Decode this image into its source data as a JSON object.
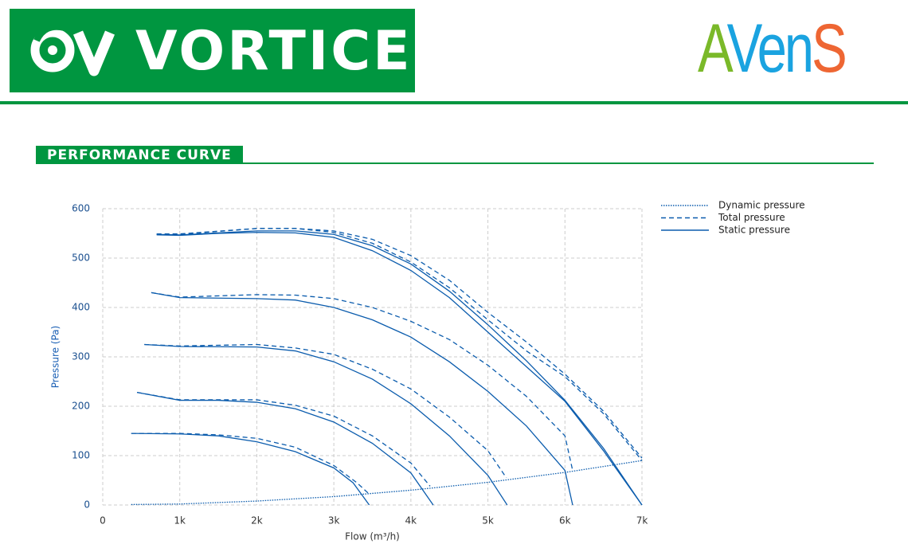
{
  "header": {
    "left_logo": "VORTICE",
    "right_logo": [
      {
        "text": "A",
        "color": "#7ab929"
      },
      {
        "text": "Ven",
        "color": "#1aa3e0"
      },
      {
        "text": "S",
        "color": "#ee6633"
      }
    ]
  },
  "section_title": "PERFORMANCE CURVE",
  "chart_data": {
    "type": "line",
    "x_label": "Flow (m³/h)",
    "y_label": "Pressure (Pa)",
    "xlim": [
      0,
      7000
    ],
    "ylim": [
      0,
      600
    ],
    "xticks": [
      0,
      {
        "value": 1000,
        "label": "1k"
      },
      {
        "value": 2000,
        "label": "2k"
      },
      {
        "value": 3000,
        "label": "3k"
      },
      {
        "value": 4000,
        "label": "4k"
      },
      {
        "value": 5000,
        "label": "5k"
      },
      {
        "value": 6000,
        "label": "6k"
      },
      {
        "value": 7000,
        "label": "7k"
      }
    ],
    "yticks": [
      0,
      100,
      200,
      300,
      400,
      500,
      600
    ],
    "grid": true,
    "legend": "right",
    "series": [
      {
        "name": "Dynamic pressure",
        "color": "#0b5cad",
        "style": "dotted",
        "curves": [
          {
            "x": [
              370,
              1000,
              2000,
              3000,
              4000,
              5000,
              6000,
              7000
            ],
            "values": [
              1,
              2,
              8,
              17,
              30,
              46,
              66,
              90
            ]
          }
        ]
      },
      {
        "name": "Total pressure",
        "color": "#0b5cad",
        "style": "dashed",
        "curves": [
          {
            "x": [
              370,
              1000,
              1500,
              2000,
              2500,
              3000,
              3300,
              3460
            ],
            "values": [
              145,
              145,
              142,
              135,
              117,
              80,
              45,
              22
            ]
          },
          {
            "x": [
              445,
              1000,
              2000,
              2500,
              3000,
              3500,
              4000,
              4250
            ],
            "values": [
              228,
              213,
              213,
              202,
              180,
              140,
              85,
              38
            ]
          },
          {
            "x": [
              540,
              1000,
              2000,
              2500,
              3000,
              3500,
              4000,
              4500,
              5000,
              5240
            ],
            "values": [
              325,
              322,
              325,
              318,
              305,
              275,
              235,
              178,
              110,
              55
            ]
          },
          {
            "x": [
              630,
              1000,
              2000,
              2500,
              3000,
              3500,
              4000,
              4500,
              5000,
              5500,
              6000,
              6100
            ],
            "values": [
              430,
              421,
              426,
              425,
              418,
              400,
              372,
              335,
              283,
              220,
              140,
              70
            ]
          },
          {
            "x": [
              700,
              1000,
              2000,
              2500,
              3000,
              3500,
              4000,
              4500,
              5000,
              5500,
              6000,
              6500,
              7000
            ],
            "values": [
              549,
              549,
              560,
              560,
              552,
              530,
              492,
              440,
              375,
              312,
              260,
              185,
              90
            ]
          },
          {
            "x": [
              700,
              1000,
              2000,
              2500,
              3000,
              3500,
              4000,
              4500,
              5000,
              5500,
              6000,
              6500,
              7000
            ],
            "values": [
              548,
              548,
              560,
              560,
              555,
              538,
              505,
              455,
              390,
              330,
              265,
              190,
              95
            ]
          }
        ]
      },
      {
        "name": "Static pressure",
        "color": "#0b5cad",
        "style": "solid",
        "curves": [
          {
            "x": [
              370,
              1000,
              1500,
              2000,
              2500,
              3000,
              3250,
              3460
            ],
            "values": [
              145,
              144,
              140,
              128,
              108,
              75,
              45,
              0
            ]
          },
          {
            "x": [
              445,
              1000,
              1500,
              2000,
              2500,
              3000,
              3500,
              4000,
              4290
            ],
            "values": [
              228,
              212,
              212,
              208,
              195,
              168,
              125,
              65,
              0
            ]
          },
          {
            "x": [
              540,
              1000,
              2000,
              2500,
              3000,
              3500,
              4000,
              4500,
              5000,
              5250
            ],
            "values": [
              325,
              321,
              320,
              312,
              290,
              255,
              205,
              140,
              60,
              0
            ]
          },
          {
            "x": [
              630,
              1000,
              2000,
              2500,
              3000,
              3500,
              4000,
              4500,
              5000,
              5500,
              6000,
              6100
            ],
            "values": [
              430,
              420,
              418,
              415,
              400,
              375,
              340,
              290,
              230,
              160,
              70,
              0
            ]
          },
          {
            "x": [
              700,
              1000,
              1500,
              2000,
              2500,
              3000,
              3500,
              4000,
              4500,
              5000,
              5500,
              6000,
              6500,
              7000
            ],
            "values": [
              547,
              546,
              550,
              552,
              551,
              542,
              515,
              475,
              420,
              350,
              280,
              210,
              110,
              0
            ]
          },
          {
            "x": [
              700,
              1000,
              2000,
              2500,
              3000,
              3500,
              4000,
              4500,
              5000,
              5500,
              6000,
              6500,
              7000
            ],
            "values": [
              548,
              547,
              555,
              555,
              548,
              525,
              488,
              433,
              365,
              292,
              212,
              115,
              0
            ]
          }
        ]
      }
    ]
  }
}
